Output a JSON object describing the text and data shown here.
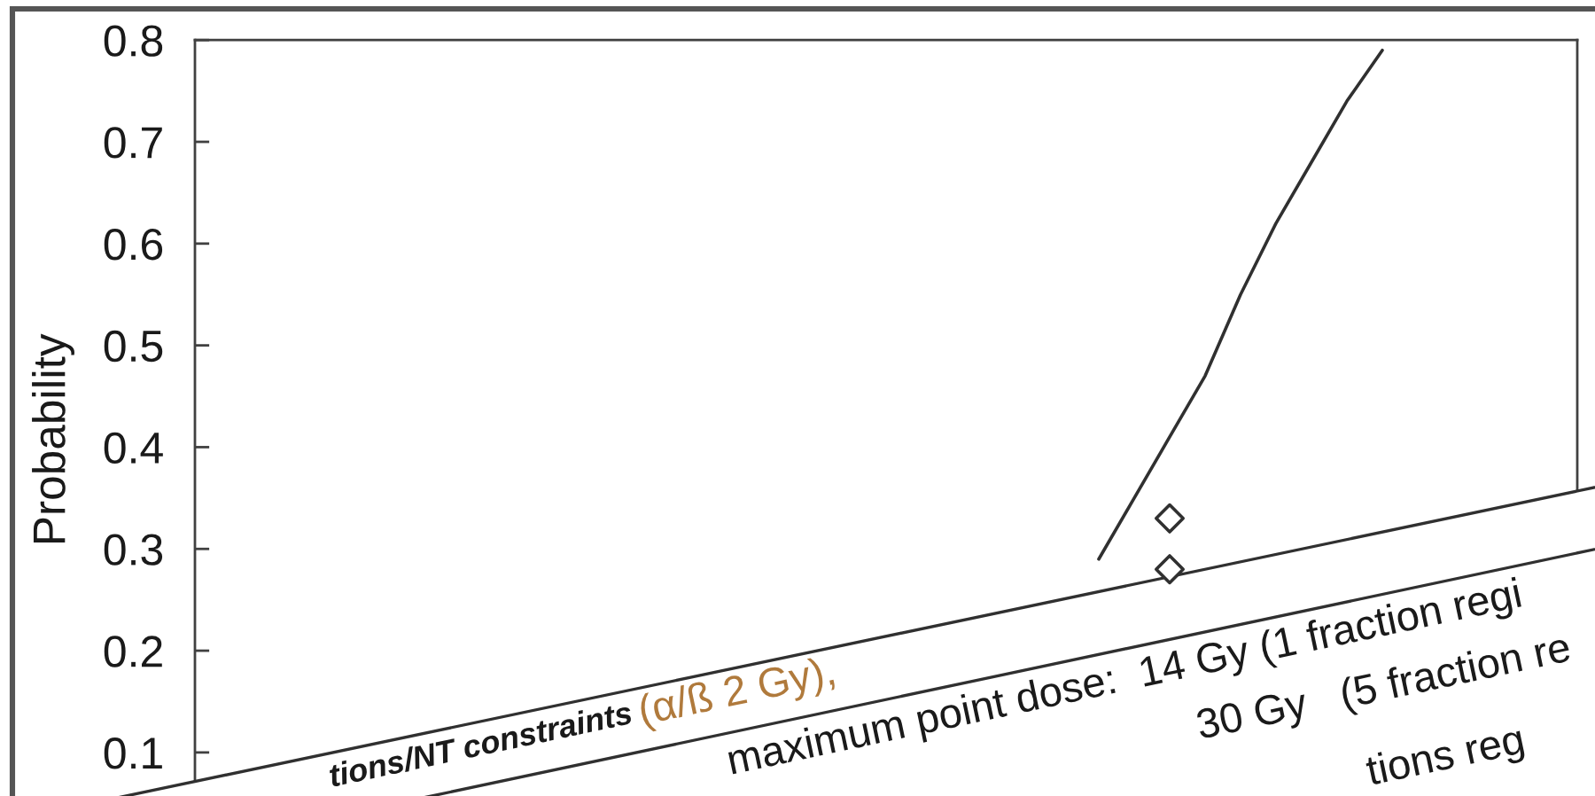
{
  "chart_data": {
    "type": "line",
    "ylabel": "Probability",
    "categories": [
      null,
      null,
      null,
      null,
      null,
      null,
      null,
      null,
      null,
      null,
      null,
      null,
      null,
      null,
      null,
      null,
      null,
      null,
      null,
      null,
      null,
      null,
      null,
      null,
      null,
      null,
      null,
      null,
      null,
      null,
      null,
      null,
      null,
      null,
      null,
      null,
      null,
      null,
      null
    ],
    "series": [
      {
        "color": "#303030",
        "values": [
          null,
          null,
          null,
          null,
          null,
          null,
          null,
          null,
          null,
          null,
          null,
          null,
          null,
          null,
          null,
          null,
          null,
          null,
          null,
          null,
          null,
          null,
          null,
          null,
          null,
          0.29,
          0.35,
          0.41,
          0.47,
          0.55,
          0.62,
          0.68,
          0.74,
          0.79,
          null,
          null,
          null,
          null,
          null
        ]
      },
      {
        "type": "scatter",
        "color": "#303030",
        "marker": "diamond",
        "values": [
          null,
          null,
          null,
          null,
          null,
          null,
          null,
          null,
          null,
          null,
          null,
          null,
          null,
          null,
          null,
          null,
          null,
          null,
          null,
          null,
          null,
          null,
          null,
          null,
          null,
          null,
          null,
          0.33,
          null,
          null,
          null,
          null,
          null,
          null,
          null,
          null,
          null,
          null,
          null
        ]
      },
      {
        "type": "scatter",
        "color": "#303030",
        "marker": "diamond",
        "values": [
          null,
          null,
          null,
          null,
          null,
          null,
          null,
          null,
          null,
          null,
          null,
          null,
          null,
          null,
          null,
          null,
          null,
          null,
          null,
          null,
          null,
          null,
          null,
          null,
          null,
          null,
          null,
          0.28,
          null,
          null,
          null,
          null,
          null,
          null,
          null,
          null,
          null,
          null,
          null
        ]
      }
    ],
    "ylim": [
      0.06,
      0.8
    ],
    "yticks": [
      0.1,
      0.2,
      0.3,
      0.4,
      0.5,
      0.6,
      0.7,
      0.8
    ],
    "tick_labels": "y",
    "annotations": [
      "tions/NT constraints",
      "(α/ß 2 Gy),",
      "maximum point dose:  14 Gy (1 fraction regi",
      "30 Gy   (5 fraction re",
      "tions reg"
    ]
  }
}
